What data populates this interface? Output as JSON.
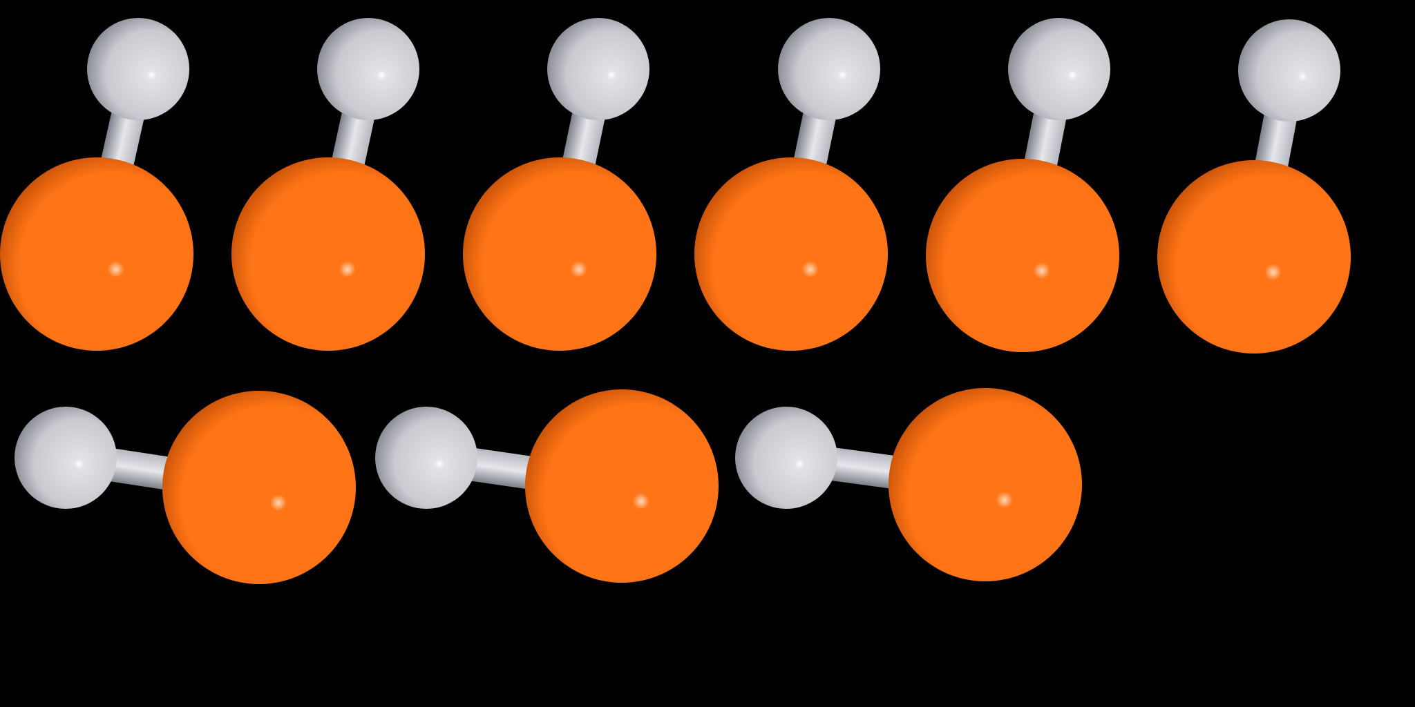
{
  "scene": {
    "background_color": "#000000",
    "atoms": {
      "large": {
        "color": "#ff7416",
        "highlight": "#ffd9b8",
        "shadow": "#c24f07"
      },
      "small": {
        "color": "#c9c9cf",
        "highlight": "#ffffff",
        "shadow": "#8e9099"
      },
      "bond": {
        "color": "#b6b8bf",
        "highlight": "#e6e7eb",
        "shadow": "#7d8089"
      }
    },
    "molecules": [
      {
        "orientation": "small-atom-above"
      },
      {
        "orientation": "small-atom-above"
      },
      {
        "orientation": "small-atom-above"
      },
      {
        "orientation": "small-atom-above"
      },
      {
        "orientation": "small-atom-above"
      },
      {
        "orientation": "small-atom-above"
      },
      {
        "orientation": "small-atom-left"
      },
      {
        "orientation": "small-atom-left"
      },
      {
        "orientation": "small-atom-left"
      }
    ]
  }
}
